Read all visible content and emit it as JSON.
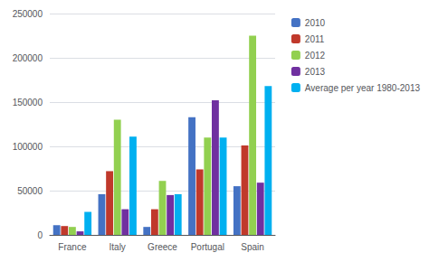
{
  "chart_data": {
    "type": "bar",
    "categories": [
      "France",
      "Italy",
      "Greece",
      "Portugal",
      "Spain"
    ],
    "series": [
      {
        "name": "2010",
        "color": "#4472c4",
        "values": [
          11000,
          46000,
          9000,
          133000,
          55000
        ]
      },
      {
        "name": "2011",
        "color": "#c0392b",
        "values": [
          10000,
          72000,
          29000,
          74000,
          101000
        ]
      },
      {
        "name": "2012",
        "color": "#92d050",
        "values": [
          9000,
          130000,
          61000,
          110000,
          225000
        ]
      },
      {
        "name": "2013",
        "color": "#7030a0",
        "values": [
          4000,
          29000,
          45000,
          152000,
          59000
        ]
      },
      {
        "name": "Average per year 1980-2013",
        "color": "#00b0f0",
        "values": [
          26000,
          111000,
          46000,
          110000,
          168000
        ]
      }
    ],
    "ylim": [
      0,
      250000
    ],
    "yticks": [
      0,
      50000,
      100000,
      150000,
      200000,
      250000
    ],
    "grid": true,
    "legend": "right"
  }
}
